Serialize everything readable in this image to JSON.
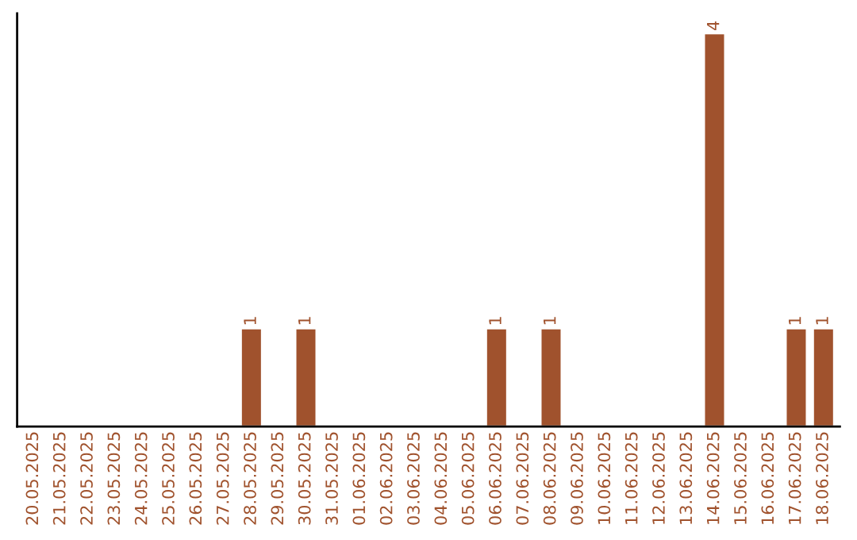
{
  "chart_data": {
    "type": "bar",
    "categories": [
      "20.05.2025",
      "21.05.2025",
      "22.05.2025",
      "23.05.2025",
      "24.05.2025",
      "25.05.2025",
      "26.05.2025",
      "27.05.2025",
      "28.05.2025",
      "29.05.2025",
      "30.05.2025",
      "31.05.2025",
      "01.06.2025",
      "02.06.2025",
      "03.06.2025",
      "04.06.2025",
      "05.06.2025",
      "06.06.2025",
      "07.06.2025",
      "08.06.2025",
      "09.06.2025",
      "10.06.2025",
      "11.06.2025",
      "12.06.2025",
      "13.06.2025",
      "14.06.2025",
      "15.06.2025",
      "16.06.2025",
      "17.06.2025",
      "18.06.2025"
    ],
    "values": [
      0,
      0,
      0,
      0,
      0,
      0,
      0,
      0,
      1,
      0,
      1,
      0,
      0,
      0,
      0,
      0,
      0,
      1,
      0,
      1,
      0,
      0,
      0,
      0,
      0,
      4,
      0,
      0,
      1,
      1
    ],
    "value_labels": [
      null,
      null,
      null,
      null,
      null,
      null,
      null,
      null,
      "1",
      null,
      "1",
      null,
      null,
      null,
      null,
      null,
      null,
      "1",
      null,
      "1",
      null,
      null,
      null,
      null,
      null,
      "4",
      null,
      null,
      "1",
      "1"
    ],
    "color": "#a0522d",
    "tick_labels": "x",
    "grid": false,
    "legend": false
  }
}
